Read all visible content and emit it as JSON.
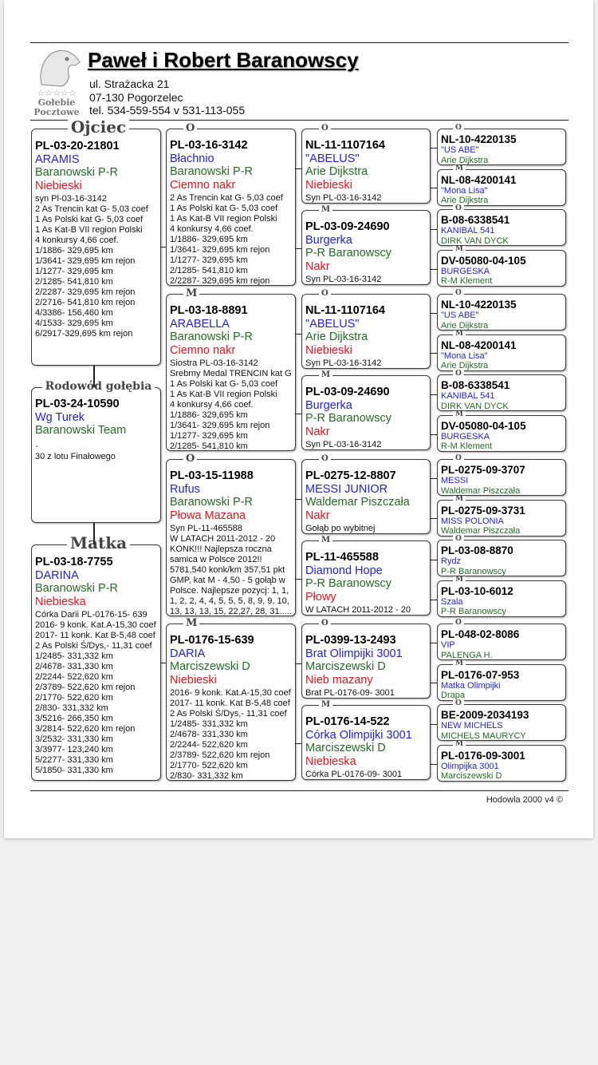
{
  "header": {
    "title": "Paweł i Robert Baranowscy",
    "address_line1": "ul. Strażacka 21",
    "address_line2": "07-130 Pogorzelec",
    "phone": "tel. 534-559-554 v 531-113-055",
    "logo_text": "Gołebie Pocztowe",
    "logo_stars": "☆☆☆☆☆"
  },
  "colors": {
    "name": "#1f1fe0",
    "breeder": "#256b25",
    "color": "#e8141e"
  },
  "generation1": [
    {
      "label": "Ojciec",
      "ring": "PL-03-20-21801",
      "name": "ARAMIS",
      "breeder": "Baranowski P-R",
      "color": "Niebieski",
      "notes": [
        "syn Pl-03-16-3142",
        "2 As Trencin kat G-  5,03 coef",
        "1 As Polski kat G-  5,03 coef",
        "1 As Kat-B VII region Polski",
        "4 konkursy 4,66 coef.",
        "1/1886- 329,695 km",
        "1/3641- 329,695 km rejon",
        "1/1277- 329,695 km",
        "2/1285- 541,810 km",
        "2/2287- 329,695 km rejon",
        "2/2716- 541,810 km rejon",
        "4/3386- 156,460 km",
        "4/1533- 329,695 km",
        "6/2917-329,695 km rejon"
      ]
    },
    {
      "label": "Rodowód gołębia",
      "ring": "PL-03-24-10590",
      "name": "Wg Turek",
      "breeder": "Baranowski Team",
      "color": ".",
      "notes": [
        "30 z lotu Finałowego"
      ]
    },
    {
      "label": "Matka",
      "ring": "PL-03-18-7755",
      "name": "DARINA",
      "breeder": "Baranowski P-R",
      "color": "Niebieska",
      "notes": [
        "Córka Darii PL-0176-15- 639",
        "2016- 9 konk. Kat.A-15,30 coef",
        "2017- 11 konk. Kat B-5,48 coef",
        "2 As Polski Ś/Dys,- 11,31 coef",
        "1/2485- 331,332 km",
        "2/4678- 331,330 km",
        "2/2244- 522,620 km",
        "2/3789- 522,620 km rejon",
        "2/1770- 522,620 km",
        "2/830- 331,332 km",
        "3/5216- 266,350 km",
        "3/2814- 522,620 km rejon",
        "3/2532- 331,330 km",
        "3/3977- 123,240 km",
        "5/2277- 331,330 km",
        "5/1850- 331,330 km"
      ]
    }
  ],
  "generation2": [
    {
      "label": "O",
      "ring": "PL-03-16-3142",
      "name": "Błachnio",
      "breeder": "Baranowski P-R",
      "color": "Ciemno nakr",
      "notes": [
        "2 As Trencin kat G-  5,03 coef",
        "1 As Polski kat G-  5,03 coef",
        "1 As Kat-B VII region Polski",
        "4 konkursy 4,66 coef.",
        "1/1886- 329,695 km",
        "1/3641- 329,695 km rejon",
        "1/1277- 329,695 km",
        "2/1285- 541,810 km",
        "2/2287- 329,695 km rejon"
      ]
    },
    {
      "label": "M",
      "ring": "PL-03-18-8891",
      "name": "ARABELLA",
      "breeder": "Baranowski P-R",
      "color": "Ciemno nakr",
      "notes": [
        "Siostra  PL-03-16-3142",
        "Srebrny Medal TRENCIN kat G",
        "1 As Polski kat G-  5,03 coef",
        "1 As Kat-B VII region Polski",
        "4 konkursy 4,66 coef.",
        "1/1886- 329,695 km",
        "1/3641- 329,695 km rejon",
        "1/1277- 329,695 km",
        "2/1285- 541,810 km"
      ]
    },
    {
      "label": "O",
      "ring": "PL-03-15-11988",
      "name": "Rufus",
      "breeder": "Baranowski P-R",
      "color": "Płowa Mazana",
      "notes": [
        "Syn PL-11-465588",
        "W LATACH 2011-2012 - 20",
        "KONK!!! Najlepsza roczna",
        "samica w Polsce 2012!!",
        "5781,540 konk/km  357,51 pkt",
        "GMP, kat M - 4,50 - 5 gołąb w",
        "Polsce. Najlepsze pozycj: 1, 1,",
        "1, 2, 2, 4, 4, 5, 5, 5, 8, 9, 9, 10,",
        "13, 13, 13, 15, 22,27, 28, 31....."
      ]
    },
    {
      "label": "M",
      "ring": "PL-0176-15-639",
      "name": "DARIA",
      "breeder": "Marciszewski D",
      "color": "Niebieski",
      "notes": [
        "2016- 9 konk. Kat.A-15,30 coef",
        "2017- 11 konk. Kat B-5,48 coef",
        "2 As Polski Ś/Dys,- 11,31 coef",
        "1/2485- 331,332 km",
        "2/4678- 331,330 km",
        "2/2244- 522,620 km",
        "2/3789- 522,620 km rejon",
        "2/1770- 522,620 km",
        "2/830- 331,332 km"
      ]
    }
  ],
  "generation3": [
    {
      "label": "O",
      "ring": "NL-11-1107164",
      "name": "\"ABELUS\"",
      "breeder": "Arie Dijkstra",
      "color": "Niebieski",
      "notes": [
        "Syn PL-03-16-3142"
      ]
    },
    {
      "label": "M",
      "ring": "PL-03-09-24690",
      "name": "Burgerka",
      "breeder": "P-R Baranowscy",
      "color": "Nakr",
      "notes": [
        "Syn PL-03-16-3142"
      ]
    },
    {
      "label": "O",
      "ring": "NL-11-1107164",
      "name": "\"ABELUS\"",
      "breeder": "Arie Dijkstra",
      "color": "Niebieski",
      "notes": [
        "Syn PL-03-16-3142"
      ]
    },
    {
      "label": "M",
      "ring": "PL-03-09-24690",
      "name": "Burgerka",
      "breeder": "P-R Baranowscy",
      "color": "Nakr",
      "notes": [
        "Syn PL-03-16-3142"
      ]
    },
    {
      "label": "O",
      "ring": "PL-0275-12-8807",
      "name": "MESSI JUNIOR",
      "breeder": "Waldemar Piszczała",
      "color": "Nakr",
      "notes": [
        "Gołąb po wybitnej"
      ]
    },
    {
      "label": "M",
      "ring": "PL-11-465588",
      "name": "Diamond Hope",
      "breeder": "P-R Baranowscy",
      "color": "Płowy",
      "notes": [
        "W LATACH 2011-2012 - 20"
      ]
    },
    {
      "label": "O",
      "ring": "PL-0399-13-2493",
      "name": "Brat Olimpijki 3001",
      "breeder": "Marciszewski D",
      "color": "Nieb mazany",
      "notes": [
        "Brat PL-0176-09- 3001"
      ]
    },
    {
      "label": "M",
      "ring": "PL-0176-14-522",
      "name": "Córka Olimpijki 3001",
      "breeder": "Marciszewski D",
      "color": "Niebieska",
      "notes": [
        "Córka PL-0176-09- 3001"
      ]
    }
  ],
  "generation4": [
    {
      "label": "O",
      "ring": "NL-10-4220135",
      "name": "\"US ABE\"",
      "breeder": "Arie Dijkstra"
    },
    {
      "label": "M",
      "ring": "NL-08-4200141",
      "name": "\"Mona Lisa\"",
      "breeder": "Arie Dijkstra"
    },
    {
      "label": "O",
      "ring": "B-08-6338541",
      "name": "KANIBAL  541",
      "breeder": "DIRK VAN DYCK"
    },
    {
      "label": "M",
      "ring": "DV-05080-04-105",
      "name": "BURGESKA",
      "breeder": "R-M Klement"
    },
    {
      "label": "O",
      "ring": "NL-10-4220135",
      "name": "\"US ABE\"",
      "breeder": "Arie Dijkstra"
    },
    {
      "label": "M",
      "ring": "NL-08-4200141",
      "name": "\"Mona Lisa\"",
      "breeder": "Arie Dijkstra"
    },
    {
      "label": "O",
      "ring": "B-08-6338541",
      "name": "KANIBAL  541",
      "breeder": "DIRK VAN DYCK"
    },
    {
      "label": "M",
      "ring": "DV-05080-04-105",
      "name": "BURGESKA",
      "breeder": "R-M Klement"
    },
    {
      "label": "O",
      "ring": "PL-0275-09-3707",
      "name": "MESSI",
      "breeder": "Waldemar Piszczała"
    },
    {
      "label": "M",
      "ring": "PL-0275-09-3731",
      "name": "MISS POLONIA",
      "breeder": "Waldemar Piszczała"
    },
    {
      "label": "O",
      "ring": "PL-03-08-8870",
      "name": "Rydz",
      "breeder": "P-R Baranowscy"
    },
    {
      "label": "M",
      "ring": "PL-03-10-6012",
      "name": "Szala",
      "breeder": "P-R Baranowscy"
    },
    {
      "label": "O",
      "ring": "PL-048-02-8086",
      "name": "VIP",
      "breeder": "PALENGA  H."
    },
    {
      "label": "M",
      "ring": "PL-0176-07-953",
      "name": "Matka Olimpijki",
      "breeder": "Drapa"
    },
    {
      "label": "O",
      "ring": "BE-2009-2034193",
      "name": "NEW MICHELS",
      "breeder": "MICHELS MAURYCY"
    },
    {
      "label": "M",
      "ring": "PL-0176-09-3001",
      "name": "Olimpijka 3001",
      "breeder": "Marciszewski D"
    }
  ],
  "footer": {
    "text": "Hodowla 2000 v4 ©"
  }
}
